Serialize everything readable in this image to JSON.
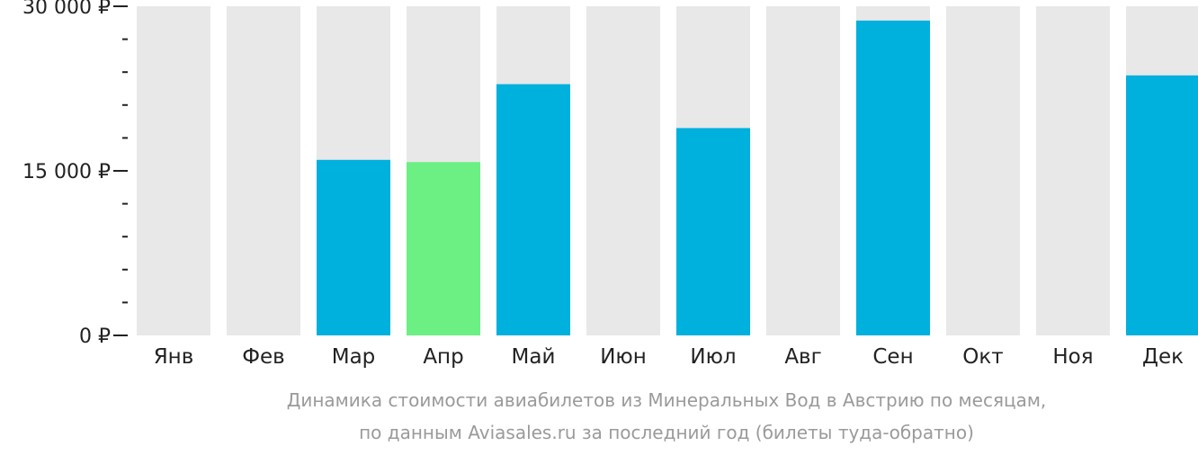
{
  "chart_data": {
    "type": "bar",
    "categories": [
      "Янв",
      "Фев",
      "Мар",
      "Апр",
      "Май",
      "Июн",
      "Июл",
      "Авг",
      "Сен",
      "Окт",
      "Ноя",
      "Дек"
    ],
    "values": [
      null,
      null,
      16000,
      15800,
      22900,
      null,
      18900,
      null,
      28700,
      null,
      null,
      23700
    ],
    "highlight_index": 3,
    "ylim": [
      0,
      30000
    ],
    "yticks": [
      {
        "value": 0,
        "label": "0 ₽"
      },
      {
        "value": 15000,
        "label": "15 000 ₽"
      },
      {
        "value": 30000,
        "label": "30 000 ₽"
      }
    ],
    "minor_tick_step": 3000,
    "caption": [
      "Динамика стоимости авиабилетов из Минеральных Вод в Австрию по месяцам,",
      "по данным Aviasales.ru за последний год (билеты туда-обратно)"
    ],
    "colors": {
      "bar": "#00b0dd",
      "highlight": "#6cf083",
      "background_bar": "#e8e8e8",
      "axis": "#222222",
      "caption": "#9a9a9a"
    }
  }
}
